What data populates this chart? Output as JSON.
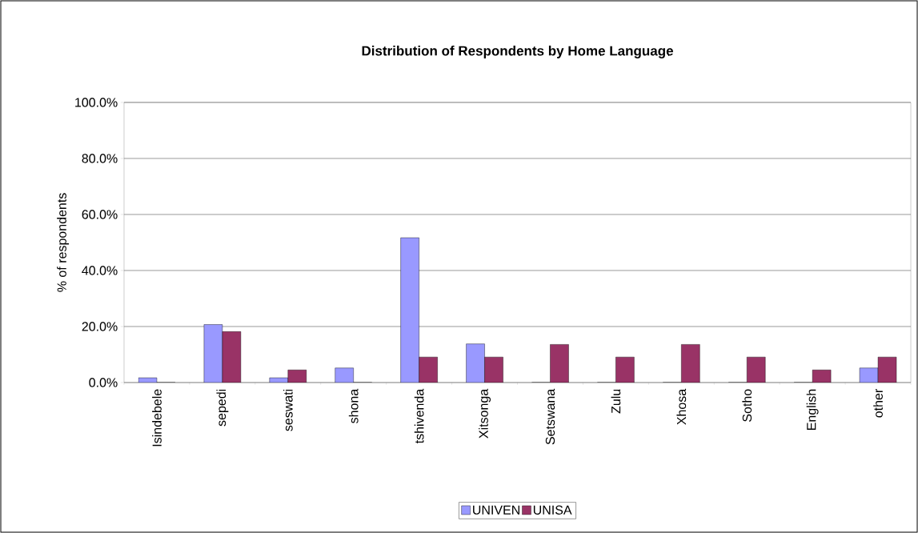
{
  "chart_data": {
    "type": "bar",
    "title": "Distribution of Respondents by Home Language",
    "ylabel": "% of respondents",
    "categories": [
      "Isindebele",
      "sepedi",
      "seswati",
      "shona",
      "tshivenda",
      "Xitsonga",
      "Setswana",
      "Zulu",
      "Xhosa",
      "Sotho",
      "English",
      "other"
    ],
    "series": [
      {
        "name": "UNIVEN",
        "color": "#9999ff",
        "values": [
          1.7,
          20.7,
          1.7,
          5.2,
          51.7,
          13.8,
          0,
          0,
          0,
          0,
          0,
          5.2
        ]
      },
      {
        "name": "UNISA",
        "color": "#993366",
        "values": [
          0,
          18.2,
          4.5,
          0,
          9.1,
          9.1,
          13.6,
          9.1,
          13.6,
          9.1,
          4.5,
          9.1
        ]
      }
    ],
    "ylim": [
      0,
      100
    ],
    "yticks": [
      {
        "value": 0,
        "label": "0.0%"
      },
      {
        "value": 20,
        "label": "20.0%"
      },
      {
        "value": 40,
        "label": "40.0%"
      },
      {
        "value": 60,
        "label": "60.0%"
      },
      {
        "value": 80,
        "label": "80.0%"
      },
      {
        "value": 100,
        "label": "100.0%"
      }
    ],
    "grid": "y",
    "legend": "bottom"
  }
}
